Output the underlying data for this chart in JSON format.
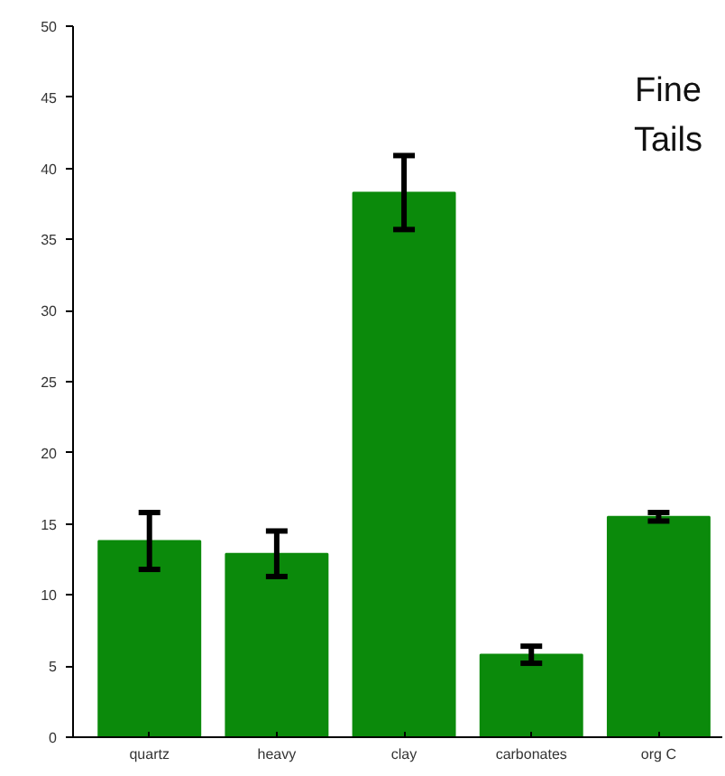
{
  "chart_data": {
    "type": "bar",
    "categories": [
      "quartz",
      "heavy",
      "clay",
      "carbonates",
      "org C"
    ],
    "values": [
      13.8,
      12.9,
      38.3,
      5.8,
      15.5
    ],
    "errors": [
      2.0,
      1.6,
      2.6,
      0.6,
      0.3
    ],
    "color": "#0b8a0b",
    "ylim": [
      0,
      50
    ],
    "yticks": [
      0,
      5,
      10,
      15,
      20,
      25,
      30,
      35,
      40,
      45,
      50
    ],
    "annotations": [
      "Fine\nTails"
    ],
    "grid": false
  }
}
